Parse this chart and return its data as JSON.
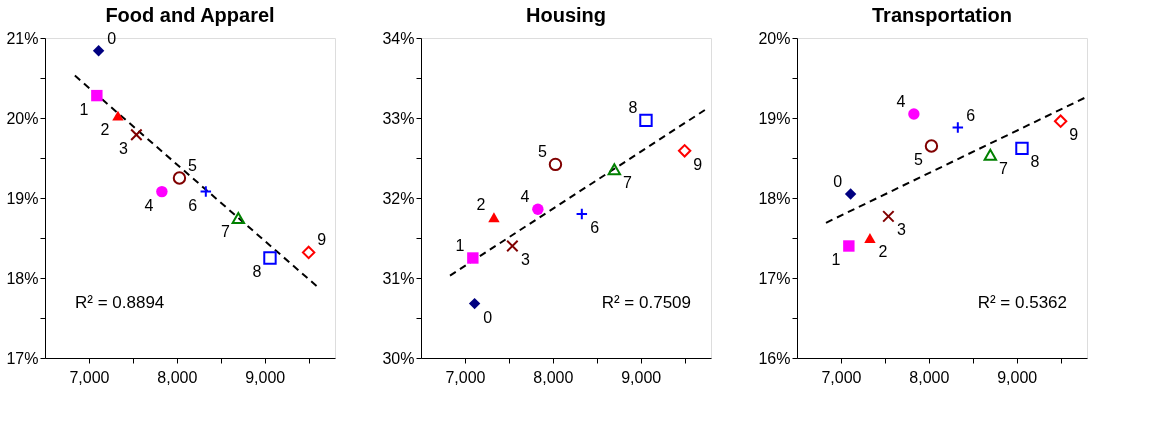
{
  "chart_data": [
    {
      "type": "scatter",
      "title": "Food and Apparel",
      "grid": false,
      "xlim": [
        6500,
        9800
      ],
      "ylim": [
        17,
        21
      ],
      "xticks": [
        {
          "value": 7000,
          "label": "7,000"
        },
        {
          "value": 7500,
          "label": null
        },
        {
          "value": 8000,
          "label": "8,000"
        },
        {
          "value": 8500,
          "label": null
        },
        {
          "value": 9000,
          "label": "9,000"
        },
        {
          "value": 9500,
          "label": null
        }
      ],
      "yticks": [
        {
          "value": 17,
          "label": "17%"
        },
        {
          "value": 17.5,
          "label": null
        },
        {
          "value": 18,
          "label": "18%"
        },
        {
          "value": 18.5,
          "label": null
        },
        {
          "value": 19,
          "label": "19%"
        },
        {
          "value": 19.5,
          "label": null
        },
        {
          "value": 20,
          "label": "20%"
        },
        {
          "value": 20.5,
          "label": null
        },
        {
          "value": 21,
          "label": "21%"
        }
      ],
      "annotations": [
        "R² = 0.8894"
      ],
      "series": [
        {
          "name": "0",
          "color": "#000080",
          "marker": "diamond",
          "x": [
            7110
          ],
          "values": [
            20.84
          ]
        },
        {
          "name": "1",
          "color": "#ff00ff",
          "marker": "square",
          "x": [
            7090
          ],
          "values": [
            20.28
          ]
        },
        {
          "name": "2",
          "color": "#ff0000",
          "marker": "triangle",
          "x": [
            7330
          ],
          "values": [
            20.03
          ]
        },
        {
          "name": "3",
          "color": "#800000",
          "marker": "x",
          "x": [
            7540
          ],
          "values": [
            19.79
          ]
        },
        {
          "name": "4",
          "color": "#ff00ff",
          "marker": "circle",
          "x": [
            7830
          ],
          "values": [
            19.08
          ]
        },
        {
          "name": "5",
          "color": "#800000",
          "marker": "circle-open",
          "x": [
            8030
          ],
          "values": [
            19.25
          ]
        },
        {
          "name": "6",
          "color": "#0000ff",
          "marker": "cross",
          "x": [
            8330
          ],
          "values": [
            19.08
          ]
        },
        {
          "name": "7",
          "color": "#008000",
          "marker": "triangle-open",
          "x": [
            8700
          ],
          "values": [
            18.75
          ]
        },
        {
          "name": "8",
          "color": "#0000ff",
          "marker": "square-open",
          "x": [
            9060
          ],
          "values": [
            18.25
          ]
        },
        {
          "name": "9",
          "color": "#ff0000",
          "marker": "diamond-open",
          "x": [
            9500
          ],
          "values": [
            18.32
          ]
        },
        {
          "type": "line",
          "color": "#000000",
          "line_style": "dashed",
          "x": [
            6840,
            9590
          ],
          "values": [
            20.53,
            17.9
          ]
        }
      ]
    },
    {
      "type": "scatter",
      "title": "Housing",
      "grid": false,
      "xlim": [
        6500,
        9800
      ],
      "ylim": [
        30,
        34
      ],
      "xticks": [
        {
          "value": 7000,
          "label": "7,000"
        },
        {
          "value": 7500,
          "label": null
        },
        {
          "value": 8000,
          "label": "8,000"
        },
        {
          "value": 8500,
          "label": null
        },
        {
          "value": 9000,
          "label": "9,000"
        },
        {
          "value": 9500,
          "label": null
        }
      ],
      "yticks": [
        {
          "value": 30,
          "label": "30%"
        },
        {
          "value": 30.5,
          "label": null
        },
        {
          "value": 31,
          "label": "31%"
        },
        {
          "value": 31.5,
          "label": null
        },
        {
          "value": 32,
          "label": "32%"
        },
        {
          "value": 32.5,
          "label": null
        },
        {
          "value": 33,
          "label": "33%"
        },
        {
          "value": 33.5,
          "label": null
        },
        {
          "value": 34,
          "label": "34%"
        }
      ],
      "annotations": [
        "R² = 0.7509"
      ],
      "series": [
        {
          "name": "0",
          "color": "#000080",
          "marker": "diamond",
          "x": [
            7110
          ],
          "values": [
            30.68
          ]
        },
        {
          "name": "1",
          "color": "#ff00ff",
          "marker": "square",
          "x": [
            7090
          ],
          "values": [
            31.25
          ]
        },
        {
          "name": "2",
          "color": "#ff0000",
          "marker": "triangle",
          "x": [
            7330
          ],
          "values": [
            31.76
          ]
        },
        {
          "name": "3",
          "color": "#800000",
          "marker": "x",
          "x": [
            7540
          ],
          "values": [
            31.4
          ]
        },
        {
          "name": "4",
          "color": "#ff00ff",
          "marker": "circle",
          "x": [
            7830
          ],
          "values": [
            31.86
          ]
        },
        {
          "name": "5",
          "color": "#800000",
          "marker": "circle-open",
          "x": [
            8030
          ],
          "values": [
            32.42
          ]
        },
        {
          "name": "6",
          "color": "#0000ff",
          "marker": "cross",
          "x": [
            8330
          ],
          "values": [
            31.8
          ]
        },
        {
          "name": "7",
          "color": "#008000",
          "marker": "triangle-open",
          "x": [
            8700
          ],
          "values": [
            32.36
          ]
        },
        {
          "name": "8",
          "color": "#0000ff",
          "marker": "square-open",
          "x": [
            9060
          ],
          "values": [
            32.97
          ]
        },
        {
          "name": "9",
          "color": "#ff0000",
          "marker": "diamond-open",
          "x": [
            9500
          ],
          "values": [
            32.59
          ]
        },
        {
          "type": "line",
          "color": "#000000",
          "line_style": "dashed",
          "x": [
            6830,
            9730
          ],
          "values": [
            31.03,
            33.1
          ]
        }
      ]
    },
    {
      "type": "scatter",
      "title": "Transportation",
      "grid": false,
      "xlim": [
        6500,
        9800
      ],
      "ylim": [
        16,
        20
      ],
      "xticks": [
        {
          "value": 7000,
          "label": "7,000"
        },
        {
          "value": 7500,
          "label": null
        },
        {
          "value": 8000,
          "label": "8,000"
        },
        {
          "value": 8500,
          "label": null
        },
        {
          "value": 9000,
          "label": "9,000"
        },
        {
          "value": 9500,
          "label": null
        }
      ],
      "yticks": [
        {
          "value": 16,
          "label": "16%"
        },
        {
          "value": 16.5,
          "label": null
        },
        {
          "value": 17,
          "label": "17%"
        },
        {
          "value": 17.5,
          "label": null
        },
        {
          "value": 18,
          "label": "18%"
        },
        {
          "value": 18.5,
          "label": null
        },
        {
          "value": 19,
          "label": "19%"
        },
        {
          "value": 19.5,
          "label": null
        },
        {
          "value": 20,
          "label": "20%"
        }
      ],
      "annotations": [
        "R² = 0.5362"
      ],
      "series": [
        {
          "name": "0",
          "color": "#000080",
          "marker": "diamond",
          "x": [
            7110
          ],
          "values": [
            18.05
          ]
        },
        {
          "name": "1",
          "color": "#ff00ff",
          "marker": "square",
          "x": [
            7090
          ],
          "values": [
            17.4
          ]
        },
        {
          "name": "2",
          "color": "#ff0000",
          "marker": "triangle",
          "x": [
            7330
          ],
          "values": [
            17.5
          ]
        },
        {
          "name": "3",
          "color": "#800000",
          "marker": "x",
          "x": [
            7540
          ],
          "values": [
            17.77
          ]
        },
        {
          "name": "4",
          "color": "#ff00ff",
          "marker": "circle",
          "x": [
            7830
          ],
          "values": [
            19.05
          ]
        },
        {
          "name": "5",
          "color": "#800000",
          "marker": "circle-open",
          "x": [
            8030
          ],
          "values": [
            18.65
          ]
        },
        {
          "name": "6",
          "color": "#0000ff",
          "marker": "cross",
          "x": [
            8330
          ],
          "values": [
            18.88
          ]
        },
        {
          "name": "7",
          "color": "#008000",
          "marker": "triangle-open",
          "x": [
            8700
          ],
          "values": [
            18.54
          ]
        },
        {
          "name": "8",
          "color": "#0000ff",
          "marker": "square-open",
          "x": [
            9060
          ],
          "values": [
            18.62
          ]
        },
        {
          "name": "9",
          "color": "#ff0000",
          "marker": "diamond-open",
          "x": [
            9500
          ],
          "values": [
            18.96
          ]
        },
        {
          "type": "line",
          "color": "#000000",
          "line_style": "dashed",
          "x": [
            6830,
            9770
          ],
          "values": [
            17.69,
            19.25
          ]
        }
      ]
    }
  ]
}
